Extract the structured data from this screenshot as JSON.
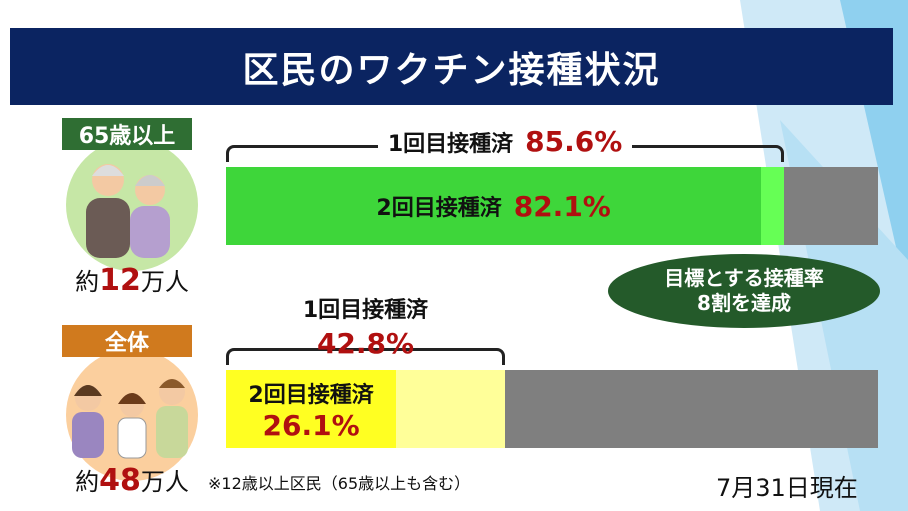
{
  "header": {
    "title": "区民のワクチン接種状況"
  },
  "groups": [
    {
      "label": "65歳以上",
      "population": {
        "prefix": "約",
        "number": 12,
        "suffix": "万人"
      },
      "dose1": {
        "label": "1回目接種済",
        "value": 85.6,
        "value_label": "85.6%"
      },
      "dose2": {
        "label": "2回目接種済",
        "value": 82.1,
        "value_label": "82.1%"
      }
    },
    {
      "label": "全体",
      "population": {
        "prefix": "約",
        "number": 48,
        "suffix": "万人"
      },
      "dose1": {
        "label": "1回目接種済",
        "value": 42.8,
        "value_label": "42.8%"
      },
      "dose2": {
        "label": "2回目接種済",
        "value": 26.1,
        "value_label": "26.1%"
      }
    }
  ],
  "target": {
    "line1": "目標とする接種率",
    "line2": "8割を達成"
  },
  "note": "※12歳以上区民（65歳以上も含む）",
  "date": "7月31日現在"
}
